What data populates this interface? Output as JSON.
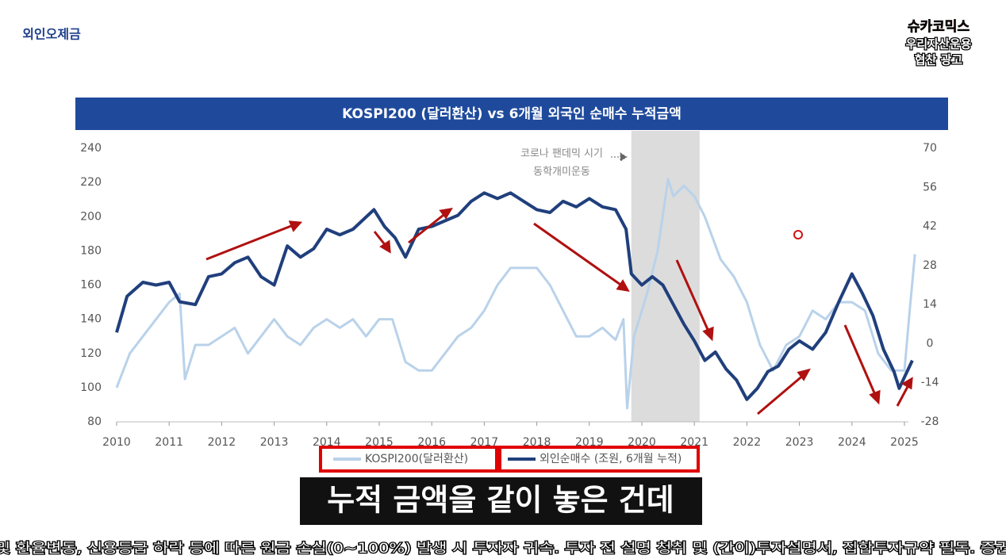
{
  "logos": {
    "left": "외인오제금",
    "right_brand": "슈카코믹스",
    "right_sponsor": "우리자산운용",
    "right_note": "협찬 광고"
  },
  "chart_data": {
    "type": "line",
    "title": "KOSPI200 (달러환산) vs 6개월 외국인 순매수 누적금액",
    "annotations": [
      "코로나 팬데믹 시기",
      "동학개미운동"
    ],
    "shaded_range": [
      2019.8,
      2021.1
    ],
    "xlim": [
      2010,
      2025.2
    ],
    "xticks": [
      2010,
      2011,
      2012,
      2013,
      2014,
      2015,
      2016,
      2017,
      2018,
      2019,
      2020,
      2021,
      2022,
      2023,
      2024,
      2025
    ],
    "ylim": [
      80,
      240
    ],
    "yticks": [
      80,
      100,
      120,
      140,
      160,
      180,
      200,
      220,
      240
    ],
    "y2lim": [
      -28,
      70
    ],
    "y2ticks": [
      -28,
      -14,
      0,
      14,
      28,
      42,
      56,
      70
    ],
    "series": [
      {
        "name": "KOSPI200(달러환산)",
        "color": "#b9d2ea",
        "axis": "y",
        "x": [
          2010.0,
          2010.25,
          2010.5,
          2010.75,
          2011.0,
          2011.2,
          2011.3,
          2011.5,
          2011.75,
          2012.0,
          2012.25,
          2012.5,
          2012.75,
          2013.0,
          2013.25,
          2013.5,
          2013.75,
          2014.0,
          2014.25,
          2014.5,
          2014.75,
          2015.0,
          2015.25,
          2015.5,
          2015.75,
          2016.0,
          2016.25,
          2016.5,
          2016.75,
          2017.0,
          2017.25,
          2017.5,
          2017.75,
          2018.0,
          2018.25,
          2018.5,
          2018.75,
          2019.0,
          2019.25,
          2019.5,
          2019.65,
          2019.72,
          2019.85,
          2020.1,
          2020.3,
          2020.5,
          2020.6,
          2020.8,
          2021.0,
          2021.2,
          2021.5,
          2021.75,
          2022.0,
          2022.25,
          2022.5,
          2022.75,
          2023.0,
          2023.25,
          2023.5,
          2023.75,
          2024.0,
          2024.25,
          2024.5,
          2024.75,
          2025.0,
          2025.1,
          2025.2
        ],
        "values": [
          100,
          120,
          130,
          140,
          150,
          155,
          105,
          125,
          125,
          130,
          135,
          120,
          130,
          140,
          130,
          125,
          135,
          140,
          135,
          140,
          130,
          140,
          140,
          115,
          110,
          110,
          120,
          130,
          135,
          145,
          160,
          170,
          170,
          170,
          160,
          145,
          130,
          130,
          135,
          128,
          140,
          88,
          130,
          155,
          180,
          222,
          212,
          218,
          212,
          200,
          175,
          165,
          150,
          125,
          110,
          125,
          130,
          145,
          140,
          150,
          150,
          145,
          120,
          110,
          110,
          145,
          178
        ]
      },
      {
        "name": "외인순매수 (조원, 6개월 누적)",
        "color": "#203f7c",
        "axis": "y2",
        "x": [
          2010.0,
          2010.2,
          2010.5,
          2010.75,
          2011.0,
          2011.2,
          2011.5,
          2011.75,
          2012.0,
          2012.25,
          2012.5,
          2012.75,
          2013.0,
          2013.25,
          2013.5,
          2013.75,
          2014.0,
          2014.25,
          2014.5,
          2014.9,
          2015.1,
          2015.3,
          2015.5,
          2015.75,
          2016.0,
          2016.25,
          2016.5,
          2016.75,
          2017.0,
          2017.25,
          2017.5,
          2017.75,
          2018.0,
          2018.25,
          2018.5,
          2018.75,
          2019.0,
          2019.25,
          2019.5,
          2019.7,
          2019.8,
          2020.0,
          2020.2,
          2020.4,
          2020.6,
          2020.8,
          2021.0,
          2021.2,
          2021.4,
          2021.6,
          2021.8,
          2022.0,
          2022.2,
          2022.4,
          2022.6,
          2022.8,
          2023.0,
          2023.25,
          2023.5,
          2023.75,
          2024.0,
          2024.2,
          2024.4,
          2024.6,
          2024.8,
          2024.9,
          2025.0,
          2025.15
        ],
        "values": [
          4,
          17,
          22,
          21,
          22,
          15,
          14,
          24,
          25,
          29,
          31,
          24,
          21,
          35,
          31,
          34,
          41,
          39,
          41,
          48,
          42,
          38,
          31,
          41,
          42,
          44,
          46,
          51,
          54,
          52,
          54,
          51,
          48,
          47,
          51,
          49,
          52,
          49,
          48,
          41,
          25,
          21,
          24,
          21,
          14,
          7,
          1,
          -6,
          -3,
          -9,
          -13,
          -20,
          -16,
          -10,
          -8,
          -2,
          1,
          -2,
          4,
          15,
          25,
          18,
          10,
          -2,
          -10,
          -16,
          -12,
          -6
        ]
      }
    ]
  },
  "caption": "누적 금액을 같이 놓은 건데",
  "disclaimer": "및 환율변동, 신용등급 하락 등에 따른 원금 손실(0~100%) 발생 시 투자자 귀속. 투자 전 설명 청취 및 (간이)투자설명서, 집합투자규약 필독. 증권"
}
